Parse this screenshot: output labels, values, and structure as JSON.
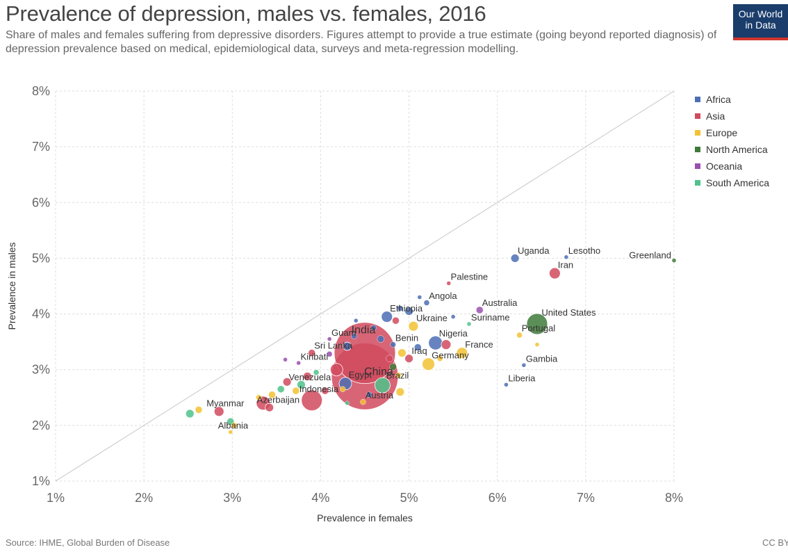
{
  "title": "Prevalence of depression, males vs. females, 2016",
  "subtitle": "Share of males and females suffering from depressive disorders. Figures attempt to provide a true estimate (going beyond reported diagnosis) of depression prevalence based on medical, epidemiological data, surveys and meta-regression modelling.",
  "logo": {
    "line1": "Our World",
    "line2": "in Data"
  },
  "source": "Source: IHME, Global Burden of Disease",
  "license": "CC BY",
  "colors": {
    "Africa": "#4c6fb5",
    "Asia": "#d14a5e",
    "Europe": "#f2c232",
    "North America": "#3f7a3a",
    "Oceania": "#9a4fb0",
    "South America": "#4fc28a"
  },
  "chart_data": {
    "type": "scatter",
    "xlabel": "Prevalence in females",
    "ylabel": "Prevalence in males",
    "xlim": [
      1,
      8
    ],
    "ylim": [
      1,
      8
    ],
    "xticks": [
      "1%",
      "2%",
      "3%",
      "4%",
      "5%",
      "6%",
      "7%",
      "8%"
    ],
    "yticks": [
      "1%",
      "2%",
      "3%",
      "4%",
      "5%",
      "6%",
      "7%",
      "8%"
    ],
    "grid": true,
    "reference_line": "y = x",
    "legend": [
      "Africa",
      "Asia",
      "Europe",
      "North America",
      "Oceania",
      "South America"
    ],
    "legend_position": "right",
    "points": [
      {
        "label": "Uganda",
        "x": 6.2,
        "y": 5.0,
        "region": "Africa",
        "size": 6
      },
      {
        "label": "Lesotho",
        "x": 6.78,
        "y": 5.02,
        "region": "Africa",
        "size": 3
      },
      {
        "label": "Greenland",
        "x": 8.0,
        "y": 4.96,
        "region": "North America",
        "size": 3
      },
      {
        "label": "Iran",
        "x": 6.65,
        "y": 4.73,
        "region": "Asia",
        "size": 8
      },
      {
        "label": "Palestine",
        "x": 5.45,
        "y": 4.55,
        "region": "Asia",
        "size": 3
      },
      {
        "label": "Angola",
        "x": 5.2,
        "y": 4.2,
        "region": "Africa",
        "size": 4
      },
      {
        "label": "Australia",
        "x": 5.8,
        "y": 4.07,
        "region": "Oceania",
        "size": 5
      },
      {
        "label": "Ethiopia",
        "x": 4.75,
        "y": 3.95,
        "region": "Africa",
        "size": 8
      },
      {
        "label": "United States",
        "x": 6.45,
        "y": 3.82,
        "region": "North America",
        "size": 15
      },
      {
        "label": "Ukraine",
        "x": 5.05,
        "y": 3.78,
        "region": "Europe",
        "size": 7
      },
      {
        "label": "Suriname",
        "x": 5.68,
        "y": 3.82,
        "region": "South America",
        "size": 3
      },
      {
        "label": "Portugal",
        "x": 6.25,
        "y": 3.62,
        "region": "Europe",
        "size": 4
      },
      {
        "label": "India",
        "x": 4.5,
        "y": 3.3,
        "region": "Asia",
        "size": 44
      },
      {
        "label": "Guam",
        "x": 4.1,
        "y": 3.55,
        "region": "Oceania",
        "size": 3
      },
      {
        "label": "Nigeria",
        "x": 5.3,
        "y": 3.48,
        "region": "Africa",
        "size": 10
      },
      {
        "label": "Benin",
        "x": 4.82,
        "y": 3.45,
        "region": "Africa",
        "size": 4
      },
      {
        "label": "France",
        "x": 5.6,
        "y": 3.3,
        "region": "Europe",
        "size": 8
      },
      {
        "label": "Sri Lanka",
        "x": 3.9,
        "y": 3.3,
        "region": "Asia",
        "size": 5
      },
      {
        "label": "Iraq",
        "x": 5.0,
        "y": 3.2,
        "region": "Asia",
        "size": 6
      },
      {
        "label": "China",
        "x": 4.5,
        "y": 2.88,
        "region": "Asia",
        "size": 48
      },
      {
        "label": "Germany",
        "x": 5.22,
        "y": 3.1,
        "region": "Europe",
        "size": 9
      },
      {
        "label": "Gambia",
        "x": 6.3,
        "y": 3.08,
        "region": "Africa",
        "size": 3
      },
      {
        "label": "Kiribati",
        "x": 3.75,
        "y": 3.12,
        "region": "Oceania",
        "size": 3
      },
      {
        "label": "Egypt",
        "x": 4.28,
        "y": 2.75,
        "region": "Africa",
        "size": 9
      },
      {
        "label": "Brazil",
        "x": 4.7,
        "y": 2.72,
        "region": "South America",
        "size": 11
      },
      {
        "label": "Liberia",
        "x": 6.1,
        "y": 2.73,
        "region": "Africa",
        "size": 3
      },
      {
        "label": "Venezuela",
        "x": 3.78,
        "y": 2.73,
        "region": "South America",
        "size": 6
      },
      {
        "label": "Indonesia",
        "x": 3.9,
        "y": 2.45,
        "region": "Asia",
        "size": 15
      },
      {
        "label": "Austria",
        "x": 4.48,
        "y": 2.42,
        "region": "Europe",
        "size": 4
      },
      {
        "label": "Myanmar",
        "x": 2.85,
        "y": 2.25,
        "region": "Asia",
        "size": 7
      },
      {
        "label": "Azerbaijan",
        "x": 3.42,
        "y": 2.32,
        "region": "Asia",
        "size": 6
      },
      {
        "label": "Albania",
        "x": 2.98,
        "y": 1.88,
        "region": "Europe",
        "size": 3
      },
      {
        "label": "",
        "x": 2.52,
        "y": 2.21,
        "region": "South America",
        "size": 6
      },
      {
        "label": "",
        "x": 2.62,
        "y": 2.28,
        "region": "Europe",
        "size": 5
      },
      {
        "label": "",
        "x": 2.98,
        "y": 2.07,
        "region": "South America",
        "size": 5
      },
      {
        "label": "",
        "x": 3.02,
        "y": 2.0,
        "region": "Europe",
        "size": 4
      },
      {
        "label": "",
        "x": 3.35,
        "y": 2.4,
        "region": "Asia",
        "size": 10
      },
      {
        "label": "",
        "x": 3.45,
        "y": 2.55,
        "region": "Europe",
        "size": 5
      },
      {
        "label": "",
        "x": 3.55,
        "y": 2.65,
        "region": "South America",
        "size": 5
      },
      {
        "label": "",
        "x": 3.3,
        "y": 2.5,
        "region": "Europe",
        "size": 4
      },
      {
        "label": "",
        "x": 3.62,
        "y": 2.78,
        "region": "Asia",
        "size": 6
      },
      {
        "label": "",
        "x": 3.72,
        "y": 2.62,
        "region": "Europe",
        "size": 5
      },
      {
        "label": "",
        "x": 3.85,
        "y": 2.88,
        "region": "Asia",
        "size": 6
      },
      {
        "label": "",
        "x": 3.95,
        "y": 2.95,
        "region": "South America",
        "size": 4
      },
      {
        "label": "",
        "x": 4.05,
        "y": 2.62,
        "region": "Asia",
        "size": 5
      },
      {
        "label": "",
        "x": 4.18,
        "y": 3.0,
        "region": "Asia",
        "size": 9
      },
      {
        "label": "",
        "x": 4.1,
        "y": 3.28,
        "region": "Oceania",
        "size": 4
      },
      {
        "label": "",
        "x": 4.3,
        "y": 3.42,
        "region": "Africa",
        "size": 6
      },
      {
        "label": "",
        "x": 4.38,
        "y": 3.6,
        "region": "Africa",
        "size": 4
      },
      {
        "label": "",
        "x": 4.4,
        "y": 3.88,
        "region": "Africa",
        "size": 3
      },
      {
        "label": "",
        "x": 4.6,
        "y": 3.75,
        "region": "Africa",
        "size": 4
      },
      {
        "label": "",
        "x": 4.68,
        "y": 3.55,
        "region": "Africa",
        "size": 5
      },
      {
        "label": "",
        "x": 4.85,
        "y": 3.88,
        "region": "Asia",
        "size": 5
      },
      {
        "label": "",
        "x": 4.9,
        "y": 4.1,
        "region": "Africa",
        "size": 4
      },
      {
        "label": "",
        "x": 5.0,
        "y": 4.05,
        "region": "Africa",
        "size": 6
      },
      {
        "label": "",
        "x": 5.12,
        "y": 4.3,
        "region": "Africa",
        "size": 3
      },
      {
        "label": "",
        "x": 4.92,
        "y": 3.3,
        "region": "Europe",
        "size": 6
      },
      {
        "label": "",
        "x": 4.78,
        "y": 3.2,
        "region": "Asia",
        "size": 5
      },
      {
        "label": "",
        "x": 4.88,
        "y": 2.9,
        "region": "Europe",
        "size": 4
      },
      {
        "label": "",
        "x": 4.9,
        "y": 2.6,
        "region": "Europe",
        "size": 6
      },
      {
        "label": "",
        "x": 4.82,
        "y": 3.05,
        "region": "North America",
        "size": 5
      },
      {
        "label": "",
        "x": 5.1,
        "y": 3.4,
        "region": "Africa",
        "size": 5
      },
      {
        "label": "",
        "x": 5.42,
        "y": 3.45,
        "region": "Asia",
        "size": 7
      },
      {
        "label": "",
        "x": 5.35,
        "y": 3.2,
        "region": "Europe",
        "size": 4
      },
      {
        "label": "",
        "x": 5.5,
        "y": 3.95,
        "region": "Africa",
        "size": 3
      },
      {
        "label": "",
        "x": 6.45,
        "y": 3.45,
        "region": "Europe",
        "size": 3
      },
      {
        "label": "",
        "x": 4.3,
        "y": 2.4,
        "region": "South America",
        "size": 3
      },
      {
        "label": "",
        "x": 4.55,
        "y": 2.55,
        "region": "Africa",
        "size": 4
      },
      {
        "label": "",
        "x": 4.25,
        "y": 2.65,
        "region": "Europe",
        "size": 4
      },
      {
        "label": "",
        "x": 3.6,
        "y": 3.18,
        "region": "Oceania",
        "size": 3
      }
    ]
  }
}
